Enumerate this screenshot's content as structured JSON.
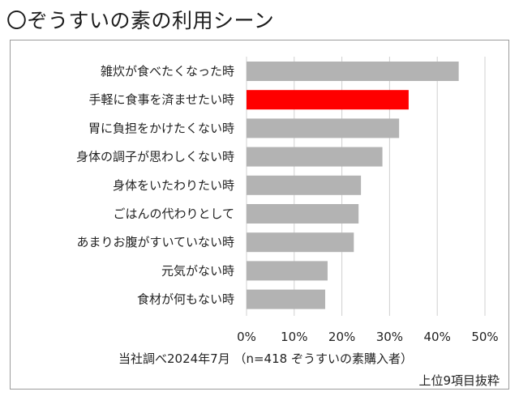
{
  "title": "〇ぞうすいの素の利用シーン",
  "source": "当社調べ2024年7月 （n=418 ぞうすいの素購入者）",
  "note": "上位9項目抜粋",
  "colors": {
    "bar": "#b3b3b3",
    "highlight": "#ff0000",
    "grid": "#d0d0d0"
  },
  "chart_data": {
    "type": "bar",
    "orientation": "horizontal",
    "categories": [
      "雑炊が食べたくなった時",
      "手軽に食事を済ませたい時",
      "胃に負担をかけたくない時",
      "身体の調子が思わしくない時",
      "身体をいたわりたい時",
      "ごはんの代わりとして",
      "あまりお腹がすいていない時",
      "元気がない時",
      "食材が何もない時"
    ],
    "values": [
      44.5,
      34,
      32,
      28.5,
      24,
      23.5,
      22.5,
      17,
      16.5
    ],
    "highlight_index": 1,
    "xlim": [
      0,
      50
    ],
    "x_ticks": [
      "0%",
      "10%",
      "20%",
      "30%",
      "40%",
      "50%"
    ],
    "grid": true
  }
}
